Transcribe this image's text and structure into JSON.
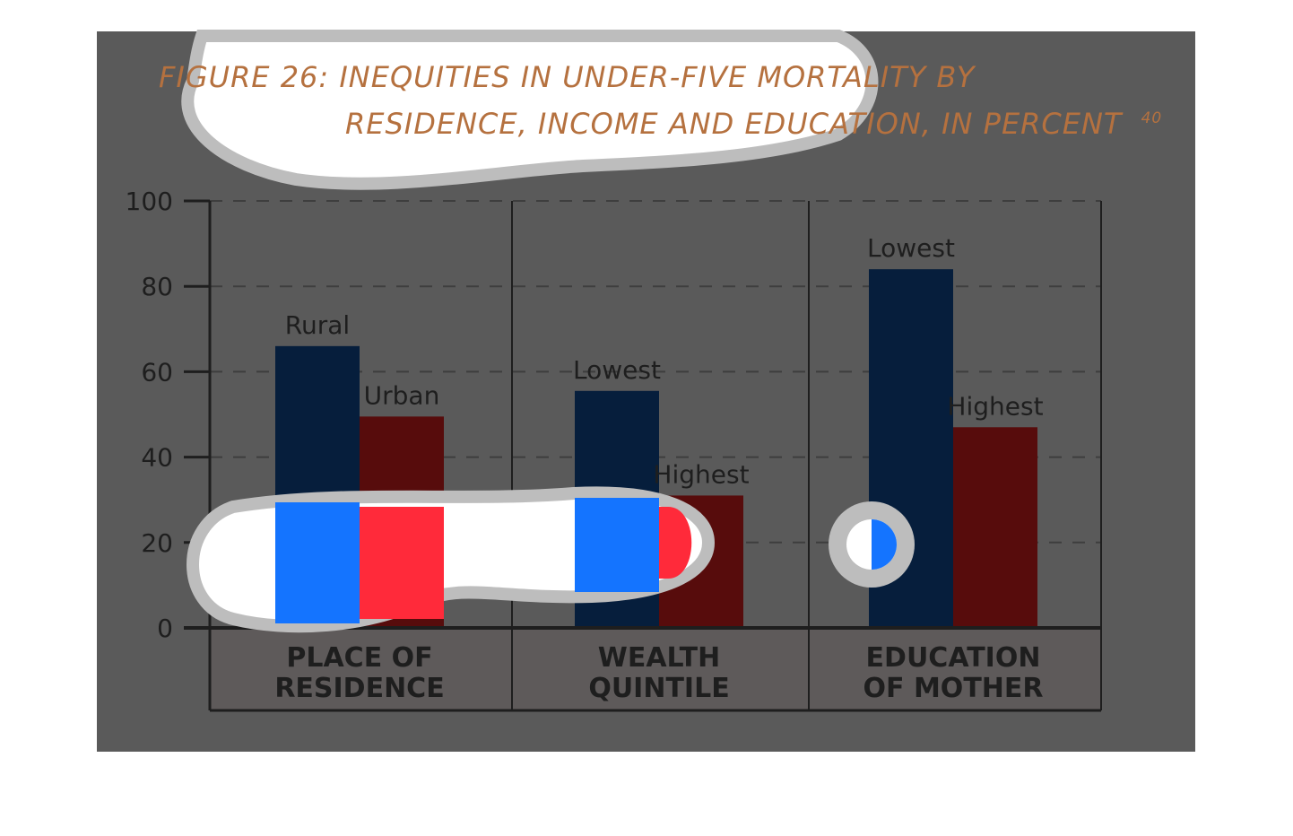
{
  "title": {
    "line1": "FIGURE 26: INEQUITIES IN UNDER-FIVE MORTALITY BY",
    "line2": "RESIDENCE, INCOME AND EDUCATION, IN PERCENT",
    "superscript": "40"
  },
  "colors": {
    "background_panel": "#5a5a5a",
    "bar_first": "#061e3c",
    "bar_second": "#570c0c",
    "title": "#b5713f",
    "highlight_blue": "#1474ff",
    "highlight_red": "#ff2a3a"
  },
  "chart_data": {
    "type": "bar",
    "title": "FIGURE 26: INEQUITIES IN UNDER-FIVE MORTALITY BY RESIDENCE, INCOME AND EDUCATION, IN PERCENT",
    "ylim": [
      0,
      100
    ],
    "yticks": [
      0,
      20,
      40,
      60,
      80,
      100
    ],
    "grid": true,
    "groups": [
      {
        "category": [
          "PLACE OF",
          "RESIDENCE"
        ],
        "bars": [
          {
            "label": "Rural",
            "value": 66,
            "color": "#061e3c"
          },
          {
            "label": "Urban",
            "value": 49.5,
            "color": "#570c0c"
          }
        ]
      },
      {
        "category": [
          "WEALTH",
          "QUINTILE"
        ],
        "bars": [
          {
            "label": "Lowest",
            "value": 55.5,
            "color": "#061e3c"
          },
          {
            "label": "Highest",
            "value": 31,
            "color": "#570c0c"
          }
        ]
      },
      {
        "category": [
          "EDUCATION",
          "OF MOTHER"
        ],
        "bars": [
          {
            "label": "Lowest",
            "value": 84,
            "color": "#061e3c"
          },
          {
            "label": "Highest",
            "value": 47,
            "color": "#570c0c"
          }
        ]
      }
    ]
  }
}
